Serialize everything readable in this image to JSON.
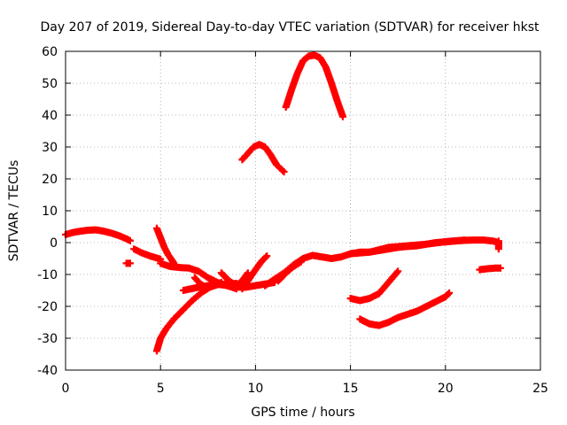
{
  "chart_data": {
    "type": "scatter",
    "title": "Day 207 of 2019, Sidereal Day-to-day VTEC variation (SDTVAR) for receiver hkst",
    "xlabel": "GPS time / hours",
    "ylabel": "SDTVAR / TECUs",
    "xlim": [
      0,
      25
    ],
    "ylim": [
      -40,
      60
    ],
    "xticks": [
      0,
      5,
      10,
      15,
      20,
      25
    ],
    "yticks": [
      -40,
      -30,
      -20,
      -10,
      0,
      10,
      20,
      30,
      40,
      50,
      60
    ],
    "grid": true,
    "legend": "none",
    "marker_color": "#ff0000",
    "series": [
      {
        "values": [
          [
            0.0,
            2.5
          ],
          [
            0.4,
            3.2
          ],
          [
            0.8,
            3.6
          ],
          [
            1.2,
            3.9
          ],
          [
            1.6,
            4.0
          ],
          [
            2.0,
            3.6
          ],
          [
            2.4,
            3.0
          ],
          [
            2.8,
            2.2
          ],
          [
            3.2,
            1.2
          ],
          [
            3.4,
            0.6
          ]
        ]
      },
      {
        "values": [
          [
            3.2,
            -6.5
          ],
          [
            3.4,
            -6.5
          ]
        ]
      },
      {
        "values": [
          [
            3.6,
            -2.0
          ],
          [
            4.0,
            -3.2
          ],
          [
            4.5,
            -4.3
          ],
          [
            5.0,
            -5.2
          ]
        ]
      },
      {
        "values": [
          [
            4.8,
            4.5
          ],
          [
            5.0,
            1.5
          ],
          [
            5.2,
            -1.5
          ],
          [
            5.4,
            -3.8
          ],
          [
            5.6,
            -5.5
          ],
          [
            5.7,
            -6.5
          ]
        ]
      },
      {
        "values": [
          [
            5.0,
            -6.5
          ],
          [
            5.5,
            -7.5
          ],
          [
            6.0,
            -7.8
          ],
          [
            6.5,
            -8.0
          ],
          [
            7.0,
            -9.0
          ],
          [
            7.5,
            -11.0
          ],
          [
            8.0,
            -12.5
          ],
          [
            8.5,
            -13.5
          ],
          [
            9.0,
            -14.5
          ]
        ]
      },
      {
        "values": [
          [
            4.8,
            -34.0
          ],
          [
            5.0,
            -30.0
          ],
          [
            5.3,
            -27.0
          ],
          [
            5.7,
            -24.0
          ],
          [
            6.2,
            -21.0
          ],
          [
            6.7,
            -18.0
          ],
          [
            7.2,
            -15.5
          ],
          [
            7.6,
            -14.0
          ],
          [
            8.0,
            -13.2
          ],
          [
            8.5,
            -13.0
          ],
          [
            9.0,
            -12.8
          ]
        ]
      },
      {
        "values": [
          [
            6.2,
            -15.0
          ],
          [
            6.6,
            -14.5
          ],
          [
            7.0,
            -14.0
          ],
          [
            7.5,
            -13.5
          ],
          [
            8.0,
            -13.0
          ],
          [
            8.5,
            -13.5
          ],
          [
            9.0,
            -14.0
          ],
          [
            9.5,
            -14.0
          ],
          [
            10.0,
            -13.5
          ],
          [
            10.5,
            -13.0
          ],
          [
            11.0,
            -12.5
          ]
        ]
      },
      {
        "values": [
          [
            6.8,
            -11.0
          ],
          [
            7.1,
            -13.0
          ],
          [
            7.4,
            -14.0
          ],
          [
            7.8,
            -13.5
          ],
          [
            8.2,
            -12.5
          ]
        ]
      },
      {
        "values": [
          [
            8.2,
            -9.5
          ],
          [
            8.6,
            -12.0
          ],
          [
            9.0,
            -13.5
          ],
          [
            9.3,
            -12.0
          ],
          [
            9.6,
            -9.5
          ]
        ]
      },
      {
        "values": [
          [
            9.3,
            -14.5
          ],
          [
            9.6,
            -12.0
          ],
          [
            10.0,
            -8.5
          ],
          [
            10.3,
            -6.0
          ],
          [
            10.6,
            -4.2
          ]
        ]
      },
      {
        "values": [
          [
            10.5,
            -13.5
          ],
          [
            11.0,
            -11.5
          ],
          [
            11.5,
            -9.5
          ],
          [
            12.0,
            -7.0
          ],
          [
            12.5,
            -5.0
          ],
          [
            13.0,
            -4.0
          ],
          [
            13.5,
            -4.5
          ],
          [
            14.0,
            -5.0
          ],
          [
            14.5,
            -4.5
          ],
          [
            15.0,
            -3.5
          ],
          [
            15.5,
            -3.0
          ],
          [
            16.0,
            -3.0
          ],
          [
            16.5,
            -2.5
          ],
          [
            17.0,
            -2.0
          ],
          [
            17.5,
            -1.5
          ],
          [
            18.0,
            -1.2
          ],
          [
            18.5,
            -1.0
          ],
          [
            19.0,
            -0.5
          ],
          [
            19.5,
            0.0
          ],
          [
            20.0,
            0.2
          ],
          [
            20.5,
            0.5
          ],
          [
            21.0,
            0.7
          ],
          [
            21.5,
            0.8
          ],
          [
            22.0,
            0.8
          ],
          [
            22.5,
            0.5
          ],
          [
            22.8,
            0.0
          ]
        ]
      },
      {
        "values": [
          [
            11.2,
            -12.0
          ],
          [
            11.6,
            -9.5
          ],
          [
            12.0,
            -7.5
          ],
          [
            12.4,
            -6.0
          ]
        ]
      },
      {
        "values": [
          [
            15.0,
            -3.5
          ],
          [
            16.0,
            -3.0
          ],
          [
            17.0,
            -1.5
          ],
          [
            18.0,
            -1.0
          ],
          [
            19.0,
            -0.5
          ],
          [
            20.0,
            0.3
          ],
          [
            21.0,
            0.8
          ]
        ]
      },
      {
        "values": [
          [
            22.8,
            -2.0
          ],
          [
            22.8,
            0.5
          ]
        ]
      },
      {
        "values": [
          [
            21.8,
            -8.5
          ],
          [
            22.2,
            -8.2
          ],
          [
            22.6,
            -8.0
          ],
          [
            22.9,
            -8.0
          ]
        ]
      },
      {
        "values": [
          [
            9.3,
            26.0
          ],
          [
            9.6,
            28.0
          ],
          [
            9.9,
            30.0
          ],
          [
            10.2,
            30.8
          ],
          [
            10.5,
            30.0
          ],
          [
            10.8,
            27.5
          ],
          [
            11.1,
            24.5
          ],
          [
            11.5,
            22.2
          ]
        ]
      },
      {
        "values": [
          [
            11.6,
            42.5
          ],
          [
            11.9,
            48.0
          ],
          [
            12.2,
            53.0
          ],
          [
            12.5,
            57.0
          ],
          [
            12.8,
            58.5
          ],
          [
            13.1,
            58.8
          ],
          [
            13.4,
            58.0
          ],
          [
            13.7,
            55.0
          ],
          [
            14.0,
            50.0
          ],
          [
            14.3,
            44.5
          ],
          [
            14.6,
            39.5
          ]
        ]
      },
      {
        "values": [
          [
            15.0,
            -17.5
          ],
          [
            15.5,
            -18.2
          ],
          [
            16.0,
            -17.5
          ],
          [
            16.5,
            -16.0
          ],
          [
            17.0,
            -12.5
          ],
          [
            17.5,
            -9.0
          ]
        ]
      },
      {
        "values": [
          [
            15.5,
            -24.0
          ],
          [
            16.0,
            -25.5
          ],
          [
            16.5,
            -26.0
          ],
          [
            17.0,
            -25.0
          ],
          [
            17.5,
            -23.5
          ],
          [
            18.0,
            -22.5
          ],
          [
            18.5,
            -21.5
          ],
          [
            19.0,
            -20.0
          ],
          [
            19.5,
            -18.5
          ],
          [
            20.0,
            -17.0
          ],
          [
            20.2,
            -15.8
          ]
        ]
      }
    ]
  }
}
